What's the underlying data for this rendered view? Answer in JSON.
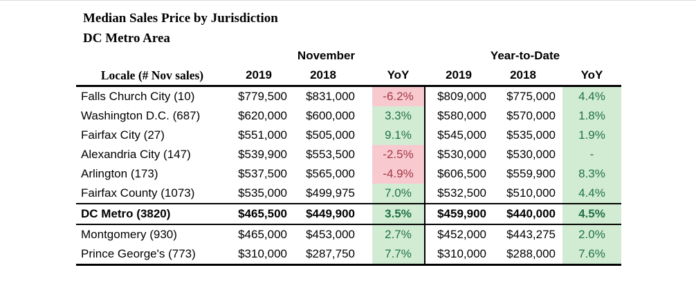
{
  "page": {
    "title": "Median Sales Price by Jurisdiction",
    "subtitle": "DC Metro Area"
  },
  "table": {
    "group_headers": {
      "november": "November",
      "year_to_date": "Year-to-Date"
    },
    "locale_header": {
      "bold": "Locale",
      "regular": " (# Nov sales)"
    },
    "column_headers": {
      "nov_2019": "2019",
      "nov_2018": "2018",
      "nov_yoy": "YoY",
      "ytd_2019": "2019",
      "ytd_2018": "2018",
      "ytd_yoy": "YoY"
    },
    "rows": [
      {
        "locale": "Falls Church City (10)",
        "nov_2019": "$779,500",
        "nov_2018": "$831,000",
        "nov_yoy": "-6.2%",
        "nov_yoy_state": "negative",
        "ytd_2019": "$809,000",
        "ytd_2018": "$775,000",
        "ytd_yoy": "4.4%",
        "ytd_yoy_state": "positive",
        "emphasis": false
      },
      {
        "locale": "Washington D.C. (687)",
        "nov_2019": "$620,000",
        "nov_2018": "$600,000",
        "nov_yoy": "3.3%",
        "nov_yoy_state": "positive",
        "ytd_2019": "$580,000",
        "ytd_2018": "$570,000",
        "ytd_yoy": "1.8%",
        "ytd_yoy_state": "positive",
        "emphasis": false
      },
      {
        "locale": "Fairfax City (27)",
        "nov_2019": "$551,000",
        "nov_2018": "$505,000",
        "nov_yoy": "9.1%",
        "nov_yoy_state": "positive",
        "ytd_2019": "$545,000",
        "ytd_2018": "$535,000",
        "ytd_yoy": "1.9%",
        "ytd_yoy_state": "positive",
        "emphasis": false
      },
      {
        "locale": "Alexandria City (147)",
        "nov_2019": "$539,900",
        "nov_2018": "$553,500",
        "nov_yoy": "-2.5%",
        "nov_yoy_state": "negative",
        "ytd_2019": "$530,000",
        "ytd_2018": "$530,000",
        "ytd_yoy": "-",
        "ytd_yoy_state": "positive",
        "emphasis": false
      },
      {
        "locale": "Arlington (173)",
        "nov_2019": "$537,500",
        "nov_2018": "$565,000",
        "nov_yoy": "-4.9%",
        "nov_yoy_state": "negative",
        "ytd_2019": "$606,500",
        "ytd_2018": "$559,900",
        "ytd_yoy": "8.3%",
        "ytd_yoy_state": "positive",
        "emphasis": false
      },
      {
        "locale": "Fairfax County (1073)",
        "nov_2019": "$535,000",
        "nov_2018": "$499,975",
        "nov_yoy": "7.0%",
        "nov_yoy_state": "positive",
        "ytd_2019": "$532,500",
        "ytd_2018": "$510,000",
        "ytd_yoy": "4.4%",
        "ytd_yoy_state": "positive",
        "emphasis": false
      },
      {
        "locale": "DC Metro (3820)",
        "nov_2019": "$465,500",
        "nov_2018": "$449,900",
        "nov_yoy": "3.5%",
        "nov_yoy_state": "positive",
        "ytd_2019": "$459,900",
        "ytd_2018": "$440,000",
        "ytd_yoy": "4.5%",
        "ytd_yoy_state": "positive",
        "emphasis": true
      },
      {
        "locale": "Montgomery (930)",
        "nov_2019": "$465,000",
        "nov_2018": "$453,000",
        "nov_yoy": "2.7%",
        "nov_yoy_state": "positive",
        "ytd_2019": "$452,000",
        "ytd_2018": "$443,275",
        "ytd_yoy": "2.0%",
        "ytd_yoy_state": "positive",
        "emphasis": false
      },
      {
        "locale": "Prince George's (773)",
        "nov_2019": "$310,000",
        "nov_2018": "$287,750",
        "nov_yoy": "7.7%",
        "nov_yoy_state": "positive",
        "ytd_2019": "$310,000",
        "ytd_2018": "$288,000",
        "ytd_yoy": "7.6%",
        "ytd_yoy_state": "positive",
        "emphasis": false
      }
    ]
  },
  "colors": {
    "negative_fill": "#F8CAD0",
    "negative_text": "#A23743",
    "positive_fill": "#D2ECD4",
    "positive_text": "#1F7145",
    "border_color": "#000000",
    "text_color": "#000000"
  }
}
